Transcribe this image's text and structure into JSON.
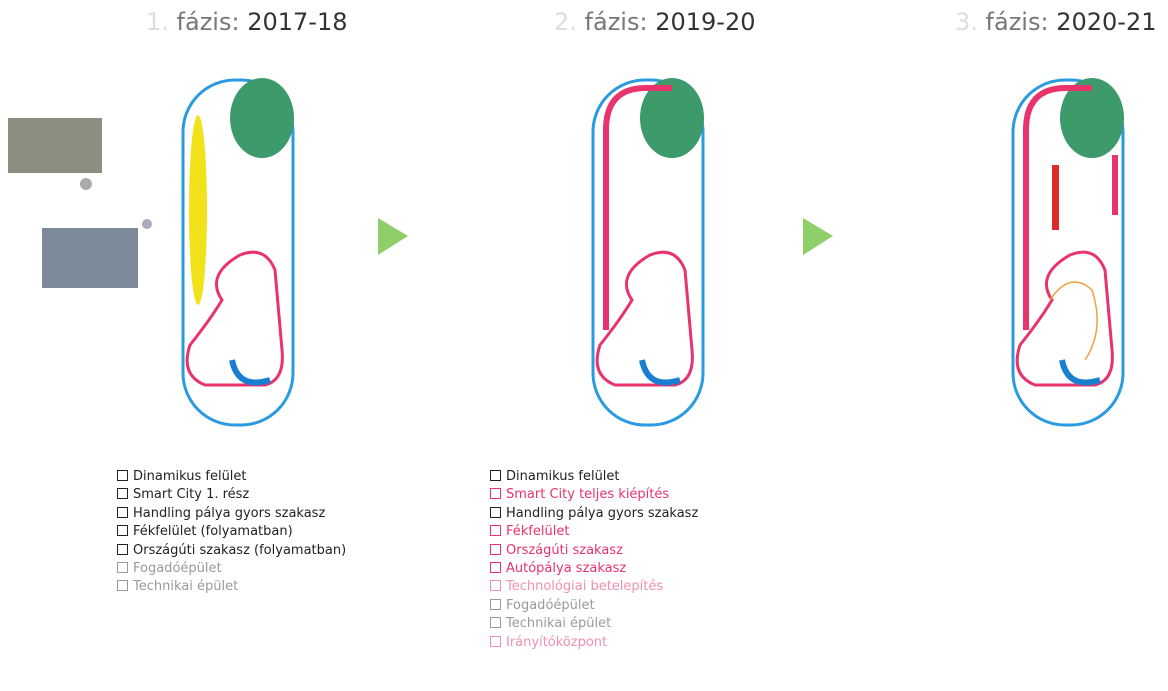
{
  "phases": [
    {
      "number": "1.",
      "label": "fázis:",
      "years": "2017-18",
      "items": [
        {
          "text": "Dinamikus felület",
          "color": "#222222"
        },
        {
          "text": "Smart City 1. rész",
          "color": "#222222"
        },
        {
          "text": "Handling pálya gyors szakasz",
          "color": "#222222"
        },
        {
          "text": "Fékfelület (folyamatban)",
          "color": "#222222"
        },
        {
          "text": "Országúti szakasz (folyamatban)",
          "color": "#222222"
        },
        {
          "text": "Fogadóépület",
          "color": "#9a9a9a"
        },
        {
          "text": "Technikai épület",
          "color": "#9a9a9a"
        }
      ]
    },
    {
      "number": "2.",
      "label": "fázis:",
      "years": "2019-20",
      "items": [
        {
          "text": "Dinamikus felület",
          "color": "#222222"
        },
        {
          "text": "Smart City teljes kiépítés",
          "color": "#e8336d"
        },
        {
          "text": "Handling pálya gyors szakasz",
          "color": "#222222"
        },
        {
          "text": "Fékfelület",
          "color": "#e8336d"
        },
        {
          "text": "Országúti szakasz",
          "color": "#e8336d"
        },
        {
          "text": "Autópálya szakasz",
          "color": "#e8336d"
        },
        {
          "text": "Technológiai betelepítés",
          "color": "#f28fae"
        },
        {
          "text": "Fogadóépület",
          "color": "#9a9a9a"
        },
        {
          "text": "Technikai épület",
          "color": "#9a9a9a"
        },
        {
          "text": "Irányítóközpont",
          "color": "#f28fae"
        }
      ]
    },
    {
      "number": "3.",
      "label": "fázis:",
      "years": "2020-21",
      "items": []
    }
  ]
}
